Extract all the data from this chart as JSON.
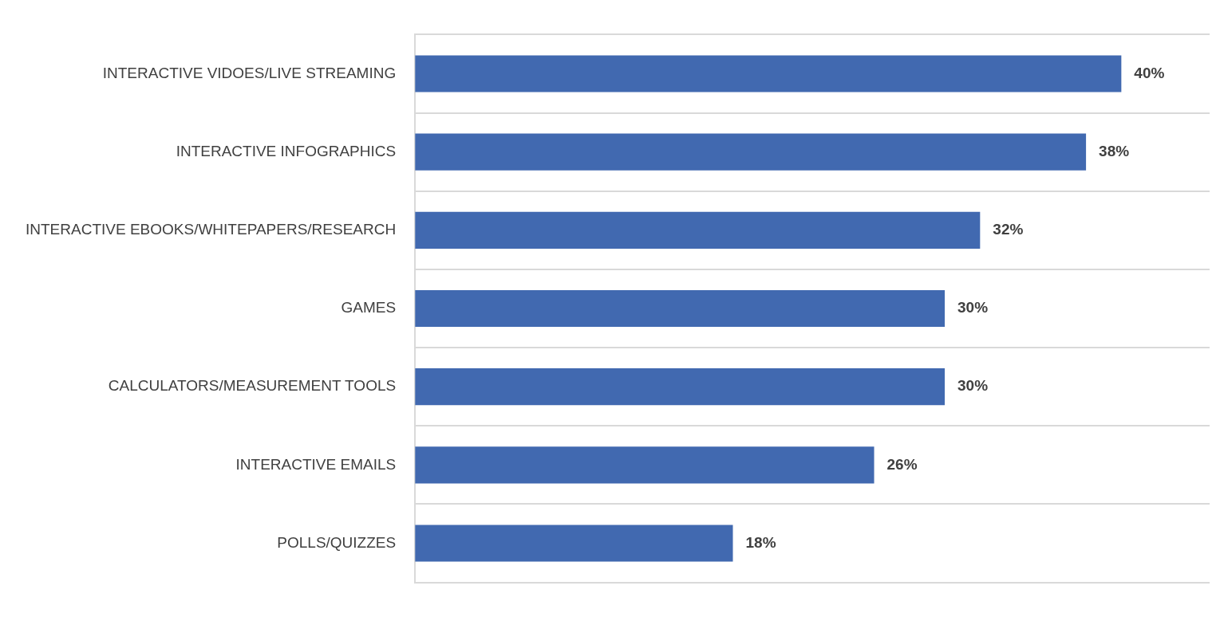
{
  "chart_data": {
    "type": "bar",
    "orientation": "horizontal",
    "categories": [
      "INTERACTIVE VIDOES/LIVE STREAMING",
      "INTERACTIVE INFOGRAPHICS",
      "INTERACTIVE EBOOKS/WHITEPAPERS/RESEARCH",
      "GAMES",
      "CALCULATORS/MEASUREMENT TOOLS",
      "INTERACTIVE EMAILS",
      "POLLS/QUIZZES"
    ],
    "values": [
      40,
      38,
      32,
      30,
      30,
      26,
      18
    ],
    "value_labels": [
      "40%",
      "38%",
      "32%",
      "30%",
      "30%",
      "26%",
      "18%"
    ],
    "color": "#4169b0",
    "grid": "y"
  }
}
